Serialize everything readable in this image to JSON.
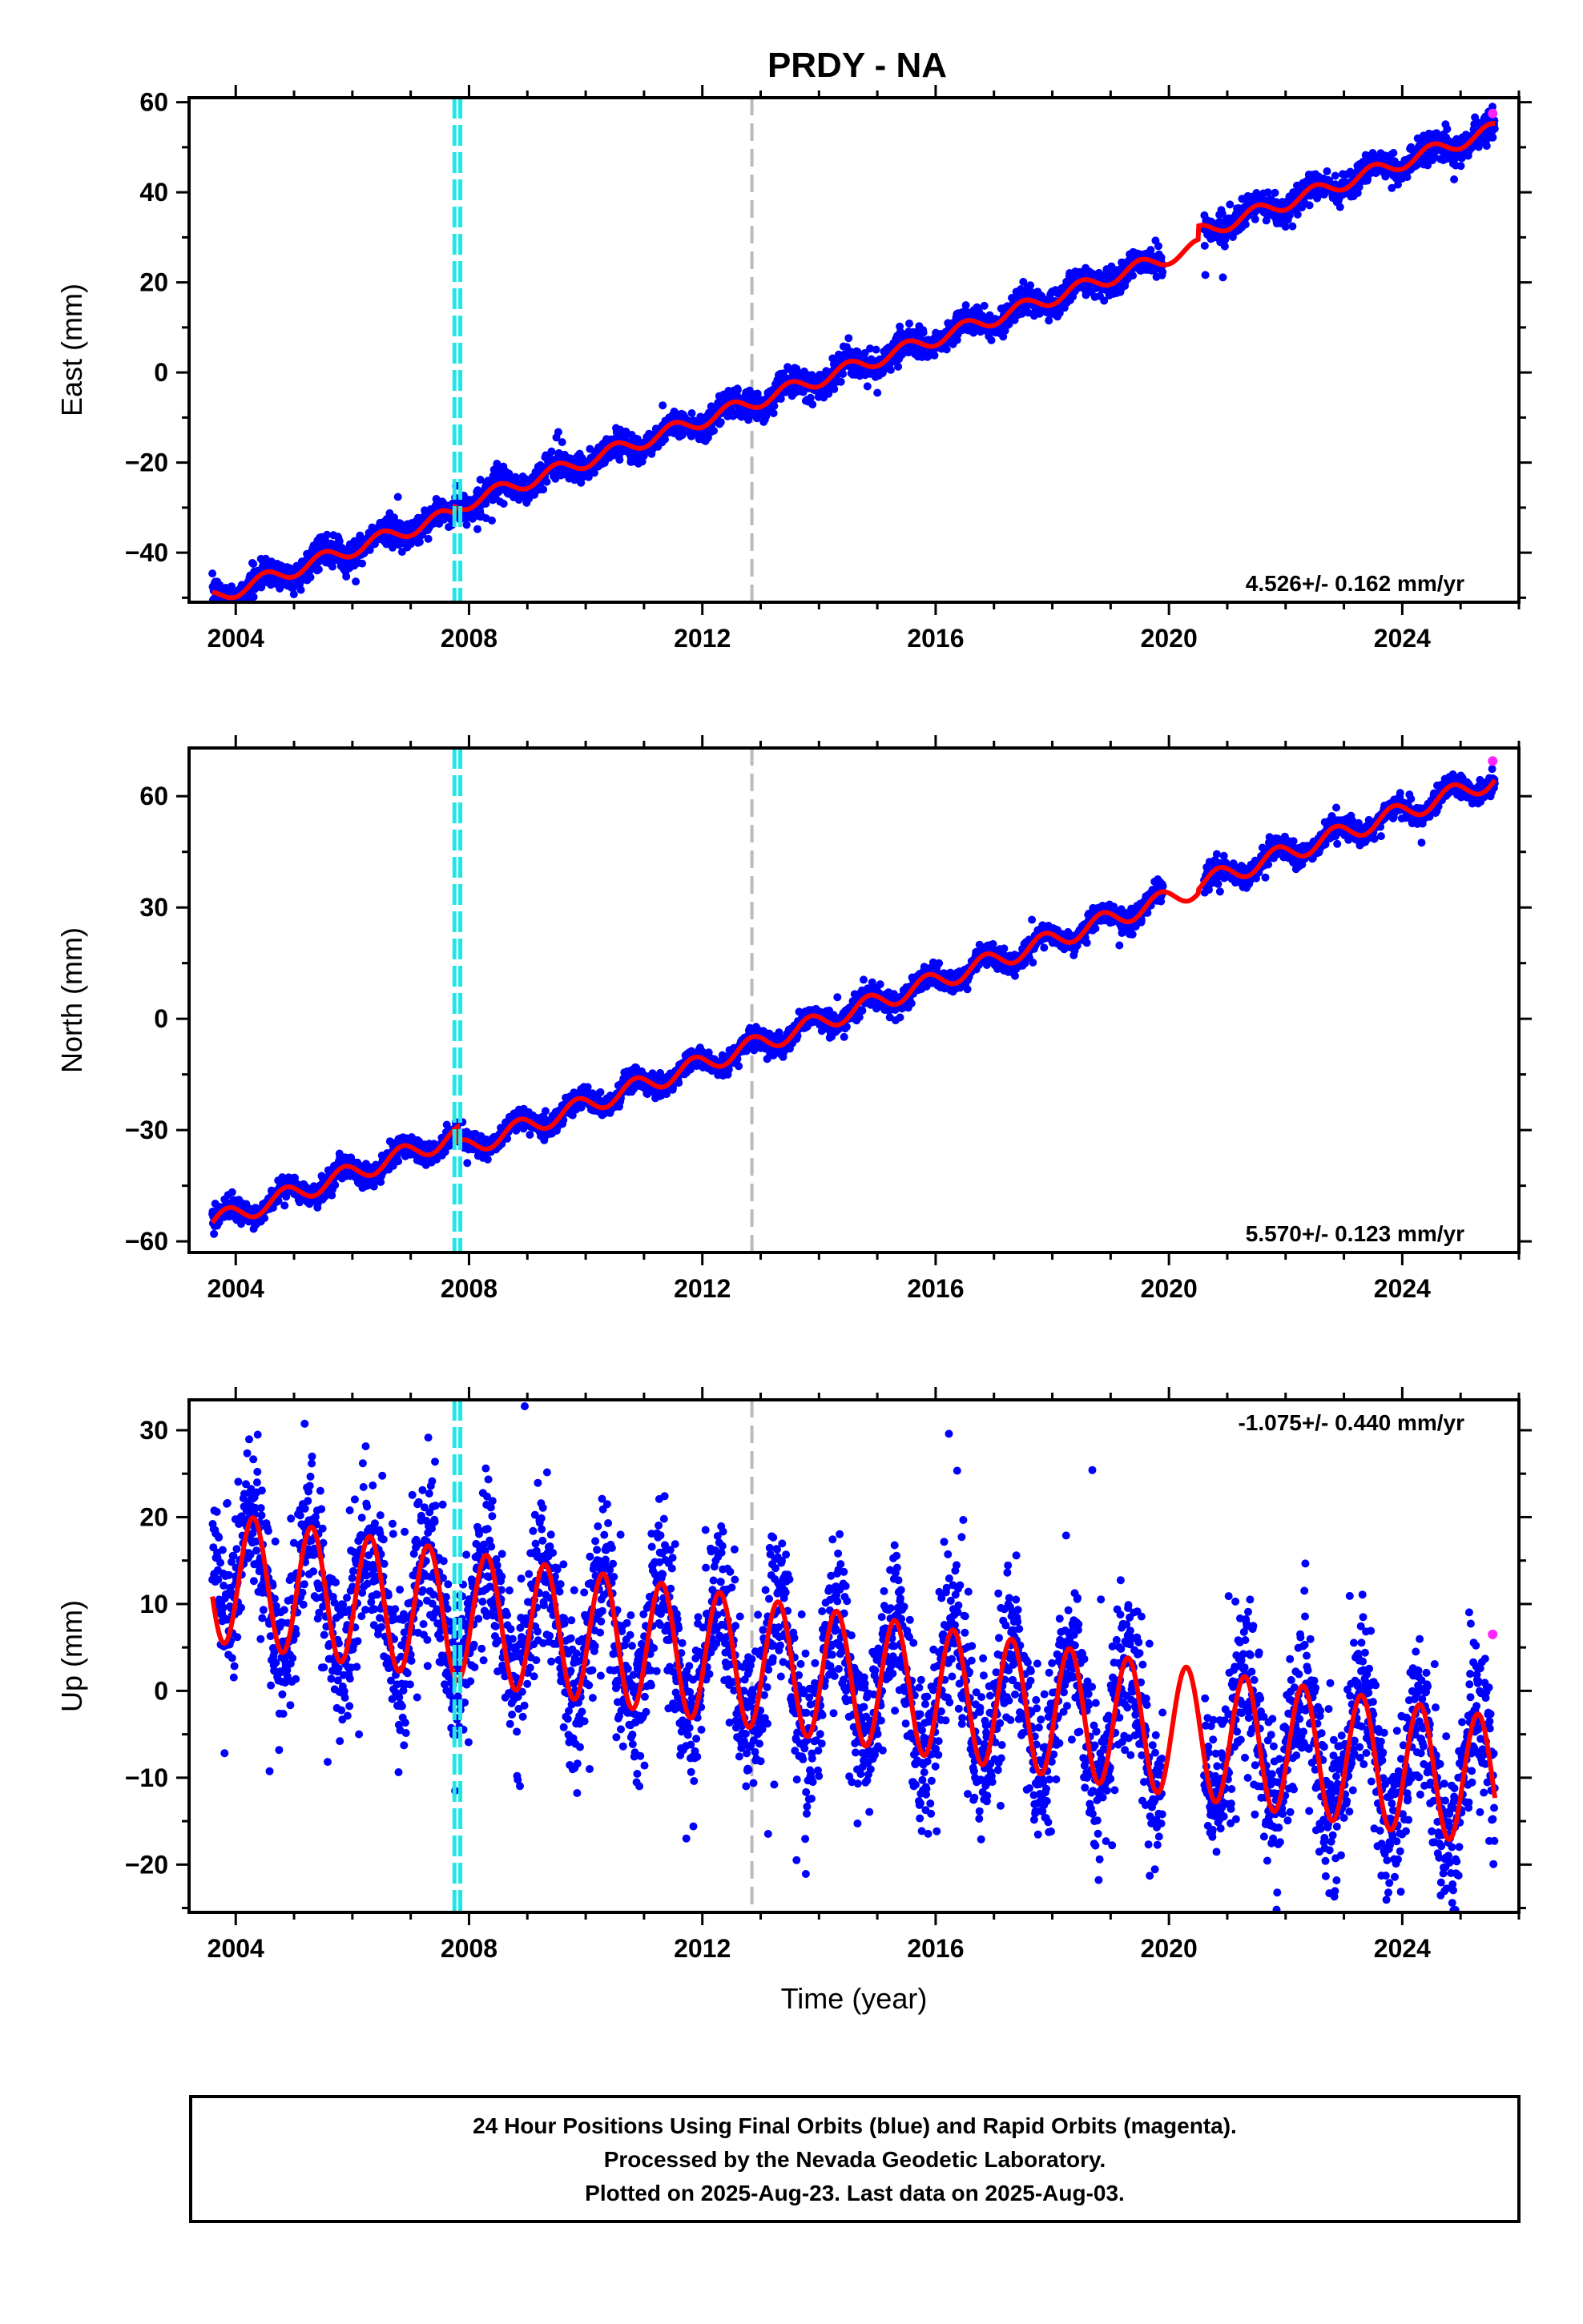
{
  "chart_data": {
    "type": "scatter",
    "title": "PRDY - NA",
    "xlabel": "Time (year)",
    "xlim": [
      2003.2,
      2026.0
    ],
    "x_ticks": [
      2004,
      2008,
      2012,
      2016,
      2020,
      2024
    ],
    "x_tick_labels": [
      "2004",
      "2008",
      "2012",
      "2016",
      "2020",
      "2024"
    ],
    "equipment_changes": [
      2007.75,
      2007.85
    ],
    "other_events": [
      2012.85
    ],
    "start_year": 2003.6,
    "end_year": 2025.59,
    "series_colors": {
      "final": "#0000ff",
      "rapid": "#ff22ff",
      "model": "#ff0000",
      "equipment": "#22e6e6",
      "event": "#bbbbbb"
    },
    "panels": [
      {
        "id": "east",
        "ylabel": "East (mm)",
        "ylim": [
          -51,
          61
        ],
        "y_ticks": [
          -40,
          -20,
          0,
          20,
          40,
          60
        ],
        "y_tick_labels": [
          "−40",
          "−20",
          "0",
          "20",
          "40",
          "60"
        ],
        "rate_text": "4.526+/- 0.162 mm/yr",
        "rate_position": "bottom-right",
        "model": {
          "ref_year": 2014.0,
          "offset": 1.5,
          "rate": 4.526,
          "annual_amp": 1.6,
          "annual_phase": 0.25,
          "offsets": [
            {
              "year": 2007.75,
              "step": 1.5
            },
            {
              "year": 2020.5,
              "step": 3.0
            }
          ]
        },
        "noise_mm": 1.5,
        "rapid_point": [
          2025.55,
          57.5
        ]
      },
      {
        "id": "north",
        "ylabel": "North (mm)",
        "ylim": [
          -63,
          73
        ],
        "y_ticks": [
          -60,
          -30,
          0,
          30,
          60
        ],
        "y_tick_labels": [
          "−60",
          "−30",
          "0",
          "30",
          "60"
        ],
        "rate_text": "5.570+/- 0.123 mm/yr",
        "rate_position": "bottom-right",
        "model": {
          "ref_year": 2014.0,
          "offset": 0.0,
          "rate": 5.57,
          "annual_amp": 2.5,
          "annual_phase": 0.6,
          "offsets": [
            {
              "year": 2007.8,
              "step": -4.0
            },
            {
              "year": 2020.5,
              "step": 1.0
            }
          ]
        },
        "noise_mm": 1.4,
        "rapid_point": [
          2025.55,
          69.5
        ]
      },
      {
        "id": "up",
        "ylabel": "Up (mm)",
        "ylim": [
          -25.5,
          33.5
        ],
        "y_ticks": [
          -20,
          -10,
          0,
          10,
          20,
          30
        ],
        "y_tick_labels": [
          "−20",
          "−10",
          "0",
          "10",
          "20",
          "30"
        ],
        "rate_text": "-1.075+/- 0.440 mm/yr",
        "rate_position": "top-right",
        "model": {
          "ref_year": 2014.0,
          "offset": 2.0,
          "rate": -1.075,
          "annual_amp": 7.5,
          "annual_phase": 0.05,
          "offsets": []
        },
        "noise_mm": 4.5,
        "rapid_point": [
          2025.55,
          6.5
        ]
      }
    ]
  },
  "footer": {
    "line1": "24 Hour Positions Using Final Orbits (blue) and Rapid Orbits (magenta).",
    "line2": "Processed by the Nevada Geodetic Laboratory.",
    "line3": "Plotted on 2025-Aug-23. Last data on 2025-Aug-03."
  }
}
